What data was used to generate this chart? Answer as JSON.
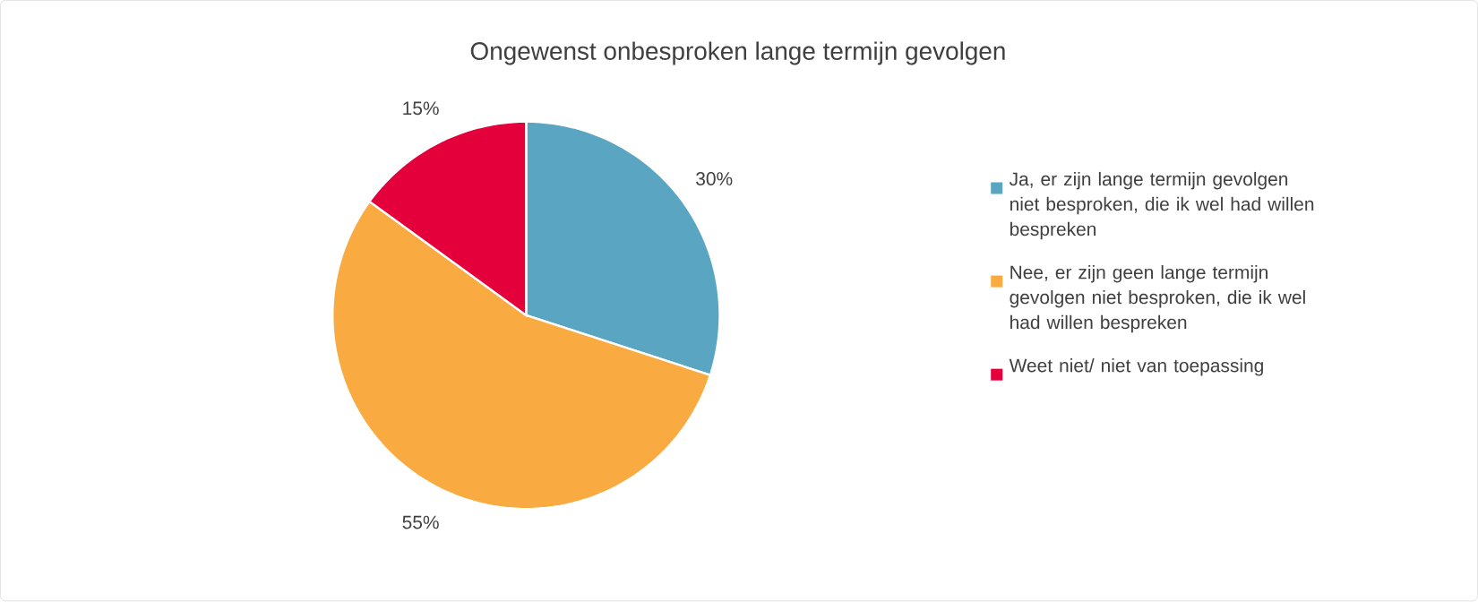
{
  "chart_data": {
    "type": "pie",
    "title": "Ongewenst onbesproken lange termijn gevolgen",
    "categories": [
      "Ja, er zijn lange termijn gevolgen niet besproken, die ik wel had willen bespreken",
      "Nee, er zijn geen lange termijn gevolgen niet besproken, die ik wel had willen bespreken",
      "Weet niet/ niet van toepassing"
    ],
    "values": [
      30,
      55,
      15
    ],
    "value_labels": [
      "30%",
      "55%",
      "15%"
    ],
    "colors": [
      "#5aa5c2",
      "#f9ab41",
      "#e4003b"
    ],
    "legend": "right"
  }
}
